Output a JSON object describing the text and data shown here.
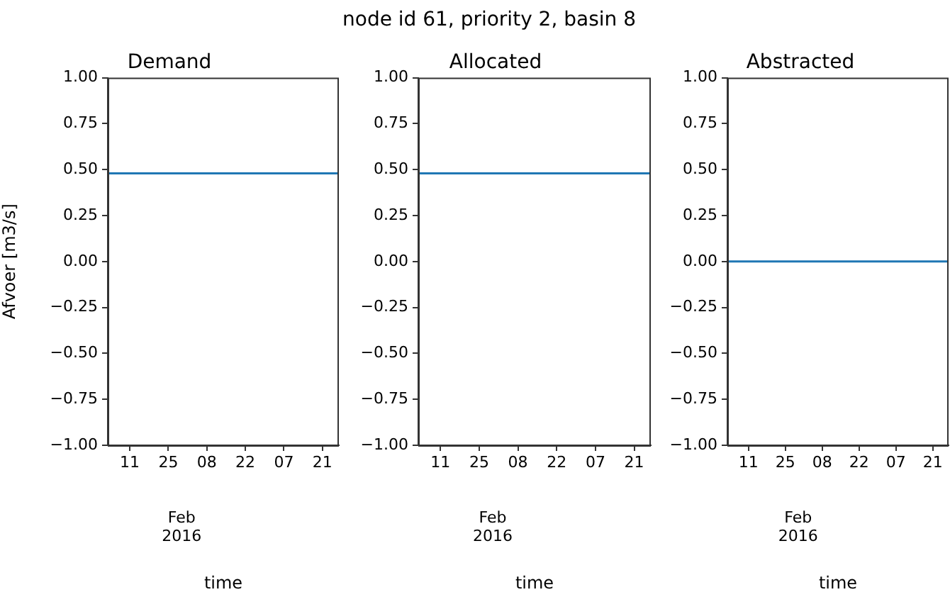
{
  "chart_data": [
    {
      "type": "line",
      "title": "Demand",
      "xlabel": "time",
      "ylabel": "Afvoer [m3/s]",
      "annotations": [
        "node id 61, priority 2, basin 8",
        "Feb\n2016"
      ],
      "x": [
        "2016-01-03",
        "2016-03-27"
      ],
      "series": [
        {
          "color": "#1f77b4",
          "values": [
            0.48,
            0.48
          ]
        }
      ],
      "xlim": [
        "2016-01-03",
        "2016-03-27"
      ],
      "xticks": [
        {
          "value": "2016-01-11",
          "label": "11"
        },
        {
          "value": "2016-01-25",
          "label": "25"
        },
        {
          "value": "2016-02-08",
          "label": "08"
        },
        {
          "value": "2016-02-22",
          "label": "22"
        },
        {
          "value": "2016-03-07",
          "label": "07"
        },
        {
          "value": "2016-03-21",
          "label": "21"
        }
      ],
      "ylim": [
        -1,
        1
      ],
      "yticks": [
        {
          "value": -1,
          "label": "−1.00"
        },
        {
          "value": -0.75,
          "label": "−0.75"
        },
        {
          "value": -0.5,
          "label": "−0.50"
        },
        {
          "value": -0.25,
          "label": "−0.25"
        },
        {
          "value": 0,
          "label": "0.00"
        },
        {
          "value": 0.25,
          "label": "0.25"
        },
        {
          "value": 0.5,
          "label": "0.50"
        },
        {
          "value": 0.75,
          "label": "0.75"
        },
        {
          "value": 1,
          "label": "1.00"
        }
      ],
      "grid": false,
      "legend": false
    },
    {
      "type": "line",
      "title": "Allocated",
      "xlabel": "time",
      "annotations": [
        "Feb\n2016"
      ],
      "x": [
        "2016-01-03",
        "2016-03-27"
      ],
      "series": [
        {
          "color": "#1f77b4",
          "values": [
            0.48,
            0.48
          ]
        }
      ],
      "xlim": [
        "2016-01-03",
        "2016-03-27"
      ],
      "xticks": [
        {
          "value": "2016-01-11",
          "label": "11"
        },
        {
          "value": "2016-01-25",
          "label": "25"
        },
        {
          "value": "2016-02-08",
          "label": "08"
        },
        {
          "value": "2016-02-22",
          "label": "22"
        },
        {
          "value": "2016-03-07",
          "label": "07"
        },
        {
          "value": "2016-03-21",
          "label": "21"
        }
      ],
      "ylim": [
        -1,
        1
      ],
      "yticks": [
        {
          "value": -1,
          "label": "−1.00"
        },
        {
          "value": -0.75,
          "label": "−0.75"
        },
        {
          "value": -0.5,
          "label": "−0.50"
        },
        {
          "value": -0.25,
          "label": "−0.25"
        },
        {
          "value": 0,
          "label": "0.00"
        },
        {
          "value": 0.25,
          "label": "0.25"
        },
        {
          "value": 0.5,
          "label": "0.50"
        },
        {
          "value": 0.75,
          "label": "0.75"
        },
        {
          "value": 1,
          "label": "1.00"
        }
      ],
      "grid": false,
      "legend": false
    },
    {
      "type": "line",
      "title": "Abstracted",
      "xlabel": "time",
      "annotations": [
        "Feb\n2016"
      ],
      "x": [
        "2016-01-03",
        "2016-03-27"
      ],
      "series": [
        {
          "color": "#1f77b4",
          "values": [
            0,
            0
          ]
        }
      ],
      "xlim": [
        "2016-01-03",
        "2016-03-27"
      ],
      "xticks": [
        {
          "value": "2016-01-11",
          "label": "11"
        },
        {
          "value": "2016-01-25",
          "label": "25"
        },
        {
          "value": "2016-02-08",
          "label": "08"
        },
        {
          "value": "2016-02-22",
          "label": "22"
        },
        {
          "value": "2016-03-07",
          "label": "07"
        },
        {
          "value": "2016-03-21",
          "label": "21"
        }
      ],
      "ylim": [
        -1,
        1
      ],
      "yticks": [
        {
          "value": -1,
          "label": "−1.00"
        },
        {
          "value": -0.75,
          "label": "−0.75"
        },
        {
          "value": -0.5,
          "label": "−0.50"
        },
        {
          "value": -0.25,
          "label": "−0.25"
        },
        {
          "value": 0,
          "label": "0.00"
        },
        {
          "value": 0.25,
          "label": "0.25"
        },
        {
          "value": 0.5,
          "label": "0.50"
        },
        {
          "value": 0.75,
          "label": "0.75"
        },
        {
          "value": 1,
          "label": "1.00"
        }
      ],
      "grid": false,
      "legend": false
    }
  ]
}
